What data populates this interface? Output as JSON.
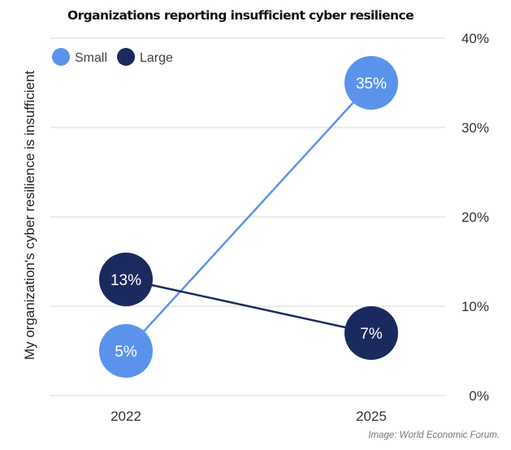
{
  "chart_data": {
    "type": "line",
    "title": "Organizations reporting insufficient cyber resilience",
    "ylabel": "My organization's cyber resilience is insufficient",
    "xlabel": "",
    "categories": [
      "2022",
      "2025"
    ],
    "series": [
      {
        "name": "Small",
        "values": [
          5,
          35
        ],
        "labels": [
          "5%",
          "35%"
        ],
        "color": "#5b93ec"
      },
      {
        "name": "Large",
        "values": [
          13,
          7
        ],
        "labels": [
          "13%",
          "7%"
        ],
        "color": "#1b2a5e"
      }
    ],
    "ylim": [
      0,
      40
    ],
    "yticks": [
      "0%",
      "10%",
      "20%",
      "30%",
      "40%"
    ],
    "yaxis_position": "right",
    "grid": true,
    "legend": "top-left",
    "source": "Image: World Economic Forum."
  }
}
